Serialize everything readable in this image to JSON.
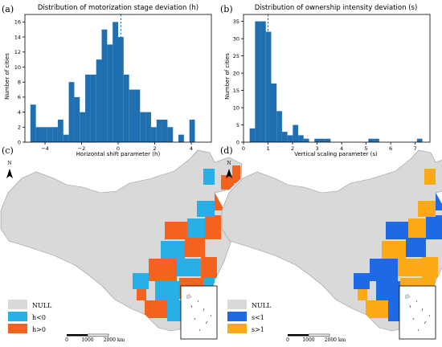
{
  "panels": {
    "a": "(a)",
    "b": "(b)",
    "c": "(c)",
    "d": "(d)"
  },
  "chart_data": [
    {
      "type": "bar",
      "title": "Distribution of motorization stage deviation (h)",
      "xlabel": "Horizontal shift parameter (h)",
      "ylabel": "Number of cities",
      "xlim": [
        -5.1,
        5.1
      ],
      "ylim": [
        0,
        17
      ],
      "xticks": [
        -4,
        -2,
        0,
        2,
        4
      ],
      "yticks": [
        0,
        2,
        4,
        6,
        8,
        10,
        12,
        14,
        16
      ],
      "bin_start": -4.8,
      "bin_width": 0.3,
      "values": [
        5,
        2,
        2,
        2,
        2,
        3,
        1,
        8,
        6,
        4,
        9,
        9,
        11,
        15,
        13,
        16,
        14,
        9,
        7,
        7,
        4,
        4,
        2,
        3,
        3,
        2,
        0,
        1,
        0,
        3
      ],
      "mean_line": 0.15,
      "color": "#1f6fb1"
    },
    {
      "type": "bar",
      "title": "Distribution of ownership intensity deviation (s)",
      "xlabel": "Vertical scaling parameter (s)",
      "ylabel": "Number of cities",
      "xlim": [
        0,
        7.6
      ],
      "ylim": [
        0,
        37
      ],
      "xticks": [
        0,
        1,
        2,
        3,
        4,
        5,
        6,
        7
      ],
      "yticks": [
        0,
        5,
        10,
        15,
        20,
        25,
        30,
        35
      ],
      "bin_start": 0.25,
      "bin_width": 0.22,
      "values": [
        4,
        35,
        35,
        32,
        17,
        9,
        3,
        2,
        5,
        2,
        1,
        0,
        1,
        1,
        1,
        0,
        0,
        0,
        0,
        0,
        0,
        0,
        1,
        1,
        0,
        0,
        0,
        0,
        0,
        0,
        0,
        1
      ],
      "mean_line": 1.0,
      "color": "#1f6fb1"
    }
  ],
  "maps": {
    "c": {
      "north": "N",
      "legend": [
        {
          "label": "NULL",
          "color": "#d9d9d9"
        },
        {
          "label": "h<0",
          "color": "#29aee6"
        },
        {
          "label": "h>0",
          "color": "#f4631e"
        }
      ],
      "scale": {
        "labels": [
          "0",
          "1000",
          "2000 km"
        ]
      }
    },
    "d": {
      "north": "N",
      "legend": [
        {
          "label": "NULL",
          "color": "#d9d9d9"
        },
        {
          "label": "s<1",
          "color": "#1e6ae6"
        },
        {
          "label": "s>1",
          "color": "#fbaa16"
        }
      ],
      "scale": {
        "labels": [
          "0",
          "1000",
          "2000 km"
        ]
      }
    }
  }
}
